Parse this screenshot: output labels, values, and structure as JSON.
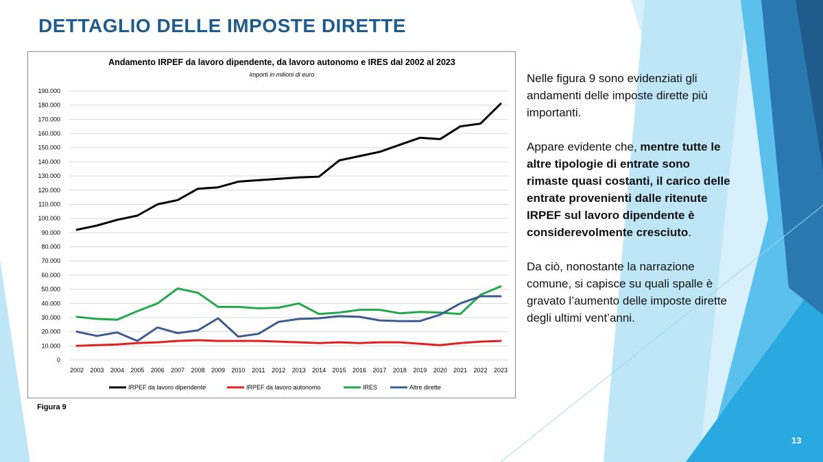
{
  "slide": {
    "title": "DETTAGLIO DELLE IMPOSTE DIRETTE",
    "figure_label": "Figura 9",
    "page_number": "13",
    "paragraph1": "Nelle figura 9 sono evidenziati gli andamenti delle imposte dirette più importanti.",
    "paragraph2_intro": "Appare evidente che, ",
    "paragraph2_bold": "mentre tutte le altre tipologie di entrate sono rimaste quasi costanti, il carico delle entrate provenienti dalle ritenute IRPEF sul lavoro dipendente è considerevolmente cresciuto",
    "paragraph2_end": ".",
    "paragraph3": "Da ciò, nonostante la narrazione comune, si capisce su quali spalle è gravato l’aumento delle imposte dirette degli ultimi vent’anni."
  },
  "colors": {
    "title": "#1f5c8c",
    "deco_light": "#bfe6f7",
    "deco_mid": "#5bc0eb",
    "deco_dark": "#2a78b0"
  },
  "chart_data": {
    "type": "line",
    "title": "Andamento IRPEF da lavoro dipendente, da lavoro autonomo e IRES dal 2002 al 2023",
    "subtitle": "importi in milioni di euro",
    "xlabel": "",
    "ylabel": "",
    "ylim": [
      0,
      190000
    ],
    "yticks": [
      "0",
      "10.000",
      "20.000",
      "30.000",
      "40.000",
      "50.000",
      "60.000",
      "70.000",
      "80.000",
      "90.000",
      "100.000",
      "110.000",
      "120.000",
      "130.000",
      "140.000",
      "150.000",
      "160.000",
      "170.000",
      "180.000",
      "190.000"
    ],
    "grid": true,
    "legend": "bottom",
    "categories": [
      "2002",
      "2003",
      "2004",
      "2005",
      "2006",
      "2007",
      "2008",
      "2009",
      "2010",
      "2011",
      "2012",
      "2013",
      "2014",
      "2015",
      "2016",
      "2017",
      "2018",
      "2019",
      "2020",
      "2021",
      "2022",
      "2023"
    ],
    "series": [
      {
        "name": "IRPEF da lavoro dipendente",
        "color": "#000000",
        "values": [
          92000,
          95000,
          99000,
          102000,
          110000,
          113000,
          121000,
          122000,
          126000,
          127000,
          128000,
          129000,
          129500,
          141000,
          144000,
          147000,
          152000,
          157000,
          156000,
          165000,
          167000,
          181000
        ]
      },
      {
        "name": "IRPEF da lavoro autonomo",
        "color": "#e02020",
        "values": [
          10000,
          10500,
          11000,
          12000,
          12500,
          13500,
          14000,
          13500,
          13500,
          13500,
          13000,
          12500,
          12000,
          12500,
          12000,
          12500,
          12500,
          11500,
          10500,
          12000,
          13000,
          13500
        ]
      },
      {
        "name": "IRES",
        "color": "#22a84a",
        "values": [
          30500,
          29000,
          28500,
          34500,
          40000,
          50500,
          47500,
          37500,
          37500,
          36500,
          37000,
          40000,
          32500,
          33500,
          35500,
          35500,
          33000,
          34000,
          33500,
          32500,
          46000,
          52000
        ]
      },
      {
        "name": "Altre dirette",
        "color": "#3d5a8c",
        "values": [
          20000,
          17000,
          19500,
          13500,
          23000,
          19000,
          21000,
          29500,
          16500,
          18500,
          27000,
          29000,
          29500,
          31000,
          30500,
          28000,
          27500,
          27500,
          32000,
          40000,
          45000,
          45000
        ]
      }
    ]
  }
}
